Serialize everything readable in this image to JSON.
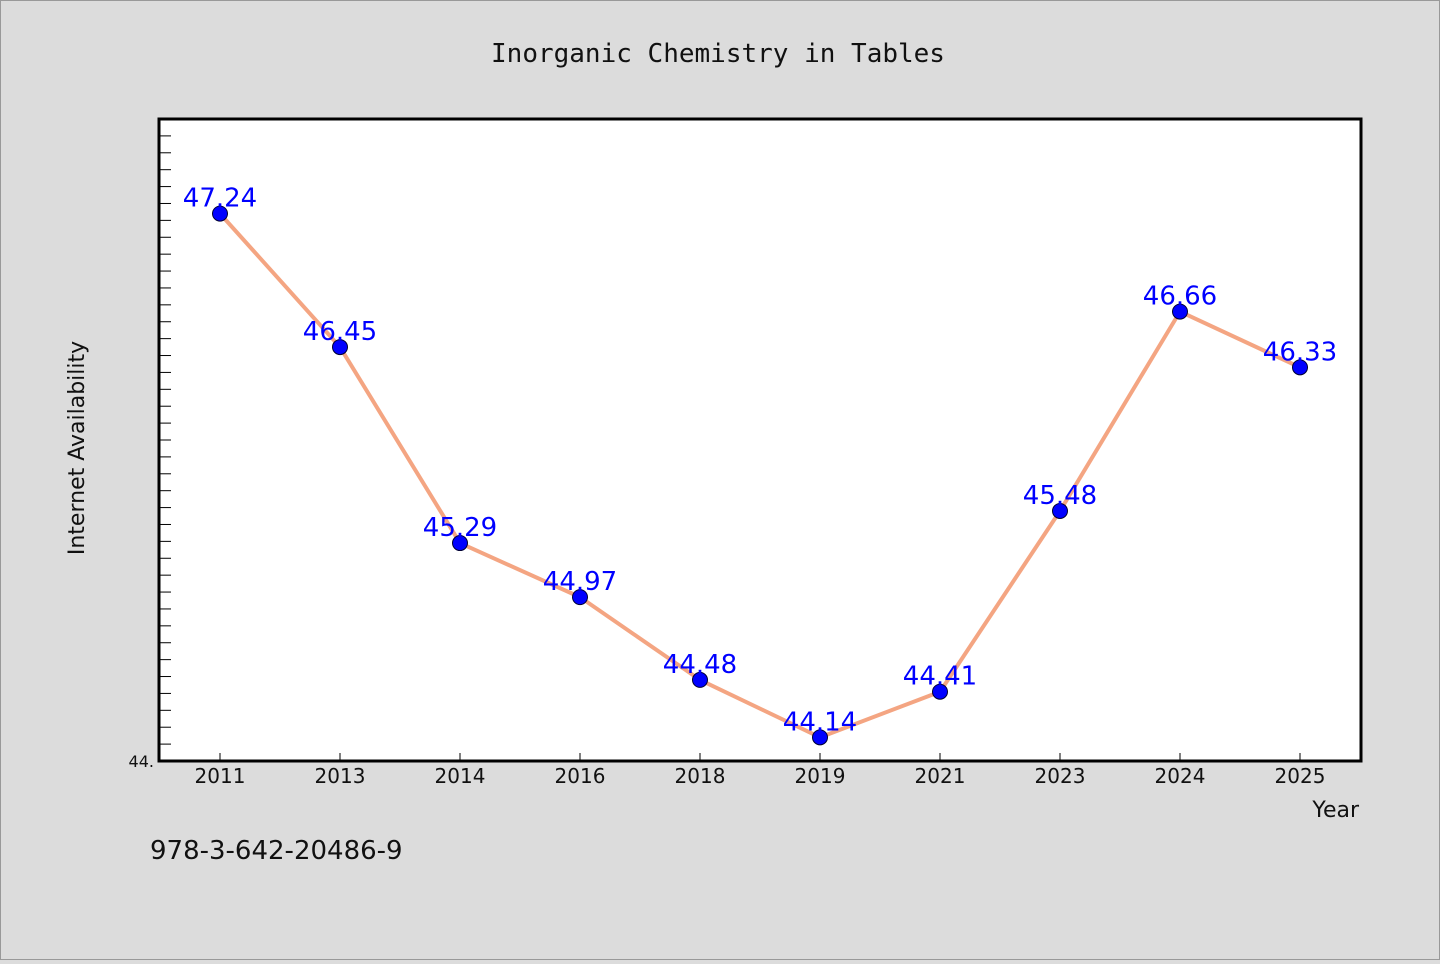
{
  "chart_data": {
    "type": "line",
    "title": "Inorganic Chemistry in Tables",
    "xlabel": "Year",
    "ylabel": "Internet Availability",
    "categories": [
      "2011",
      "2013",
      "2014",
      "2016",
      "2018",
      "2019",
      "2021",
      "2023",
      "2024",
      "2025"
    ],
    "series": [
      {
        "values": [
          47.24,
          46.45,
          45.29,
          44.97,
          44.48,
          44.14,
          44.41,
          45.48,
          46.66,
          46.33
        ],
        "labels": [
          "47.24",
          "46.45",
          "45.29",
          "44.97",
          "44.48",
          "44.14",
          "44.41",
          "45.48",
          "46.66",
          "46.33"
        ]
      }
    ],
    "ylim": [
      44.0,
      47.8
    ],
    "y_tick_label": "44.",
    "grid": false,
    "line_color": "#f4a582",
    "marker_color": "#0000ff",
    "label_color": "#0000ff"
  },
  "footer": {
    "isbn": "978-3-642-20486-9"
  }
}
